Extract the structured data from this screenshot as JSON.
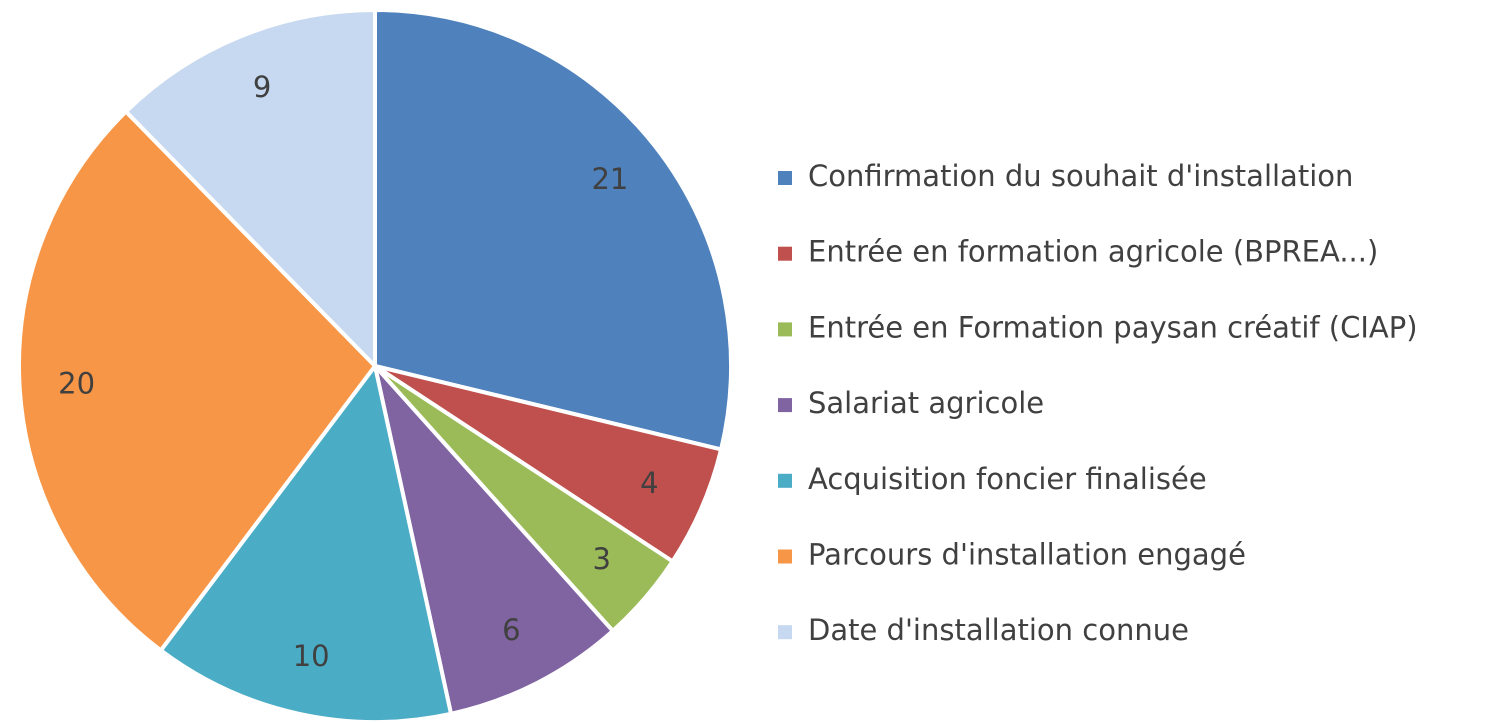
{
  "chart_data": {
    "type": "pie",
    "categories": [
      "Confirmation du souhait d'installation",
      "Entrée en formation agricole (BPREA...)",
      "Entrée en Formation paysan créatif (CIAP)",
      "Salariat agricole",
      "Acquisition foncier finalisée",
      "Parcours d'installation engagé",
      "Date d'installation connue"
    ],
    "values": [
      21,
      4,
      3,
      6,
      10,
      20,
      9
    ],
    "colors": [
      "#4f81bd",
      "#c0504d",
      "#9bbb59",
      "#8064a2",
      "#4bacc6",
      "#f79646",
      "#c6d9f0"
    ],
    "legend": "right"
  }
}
